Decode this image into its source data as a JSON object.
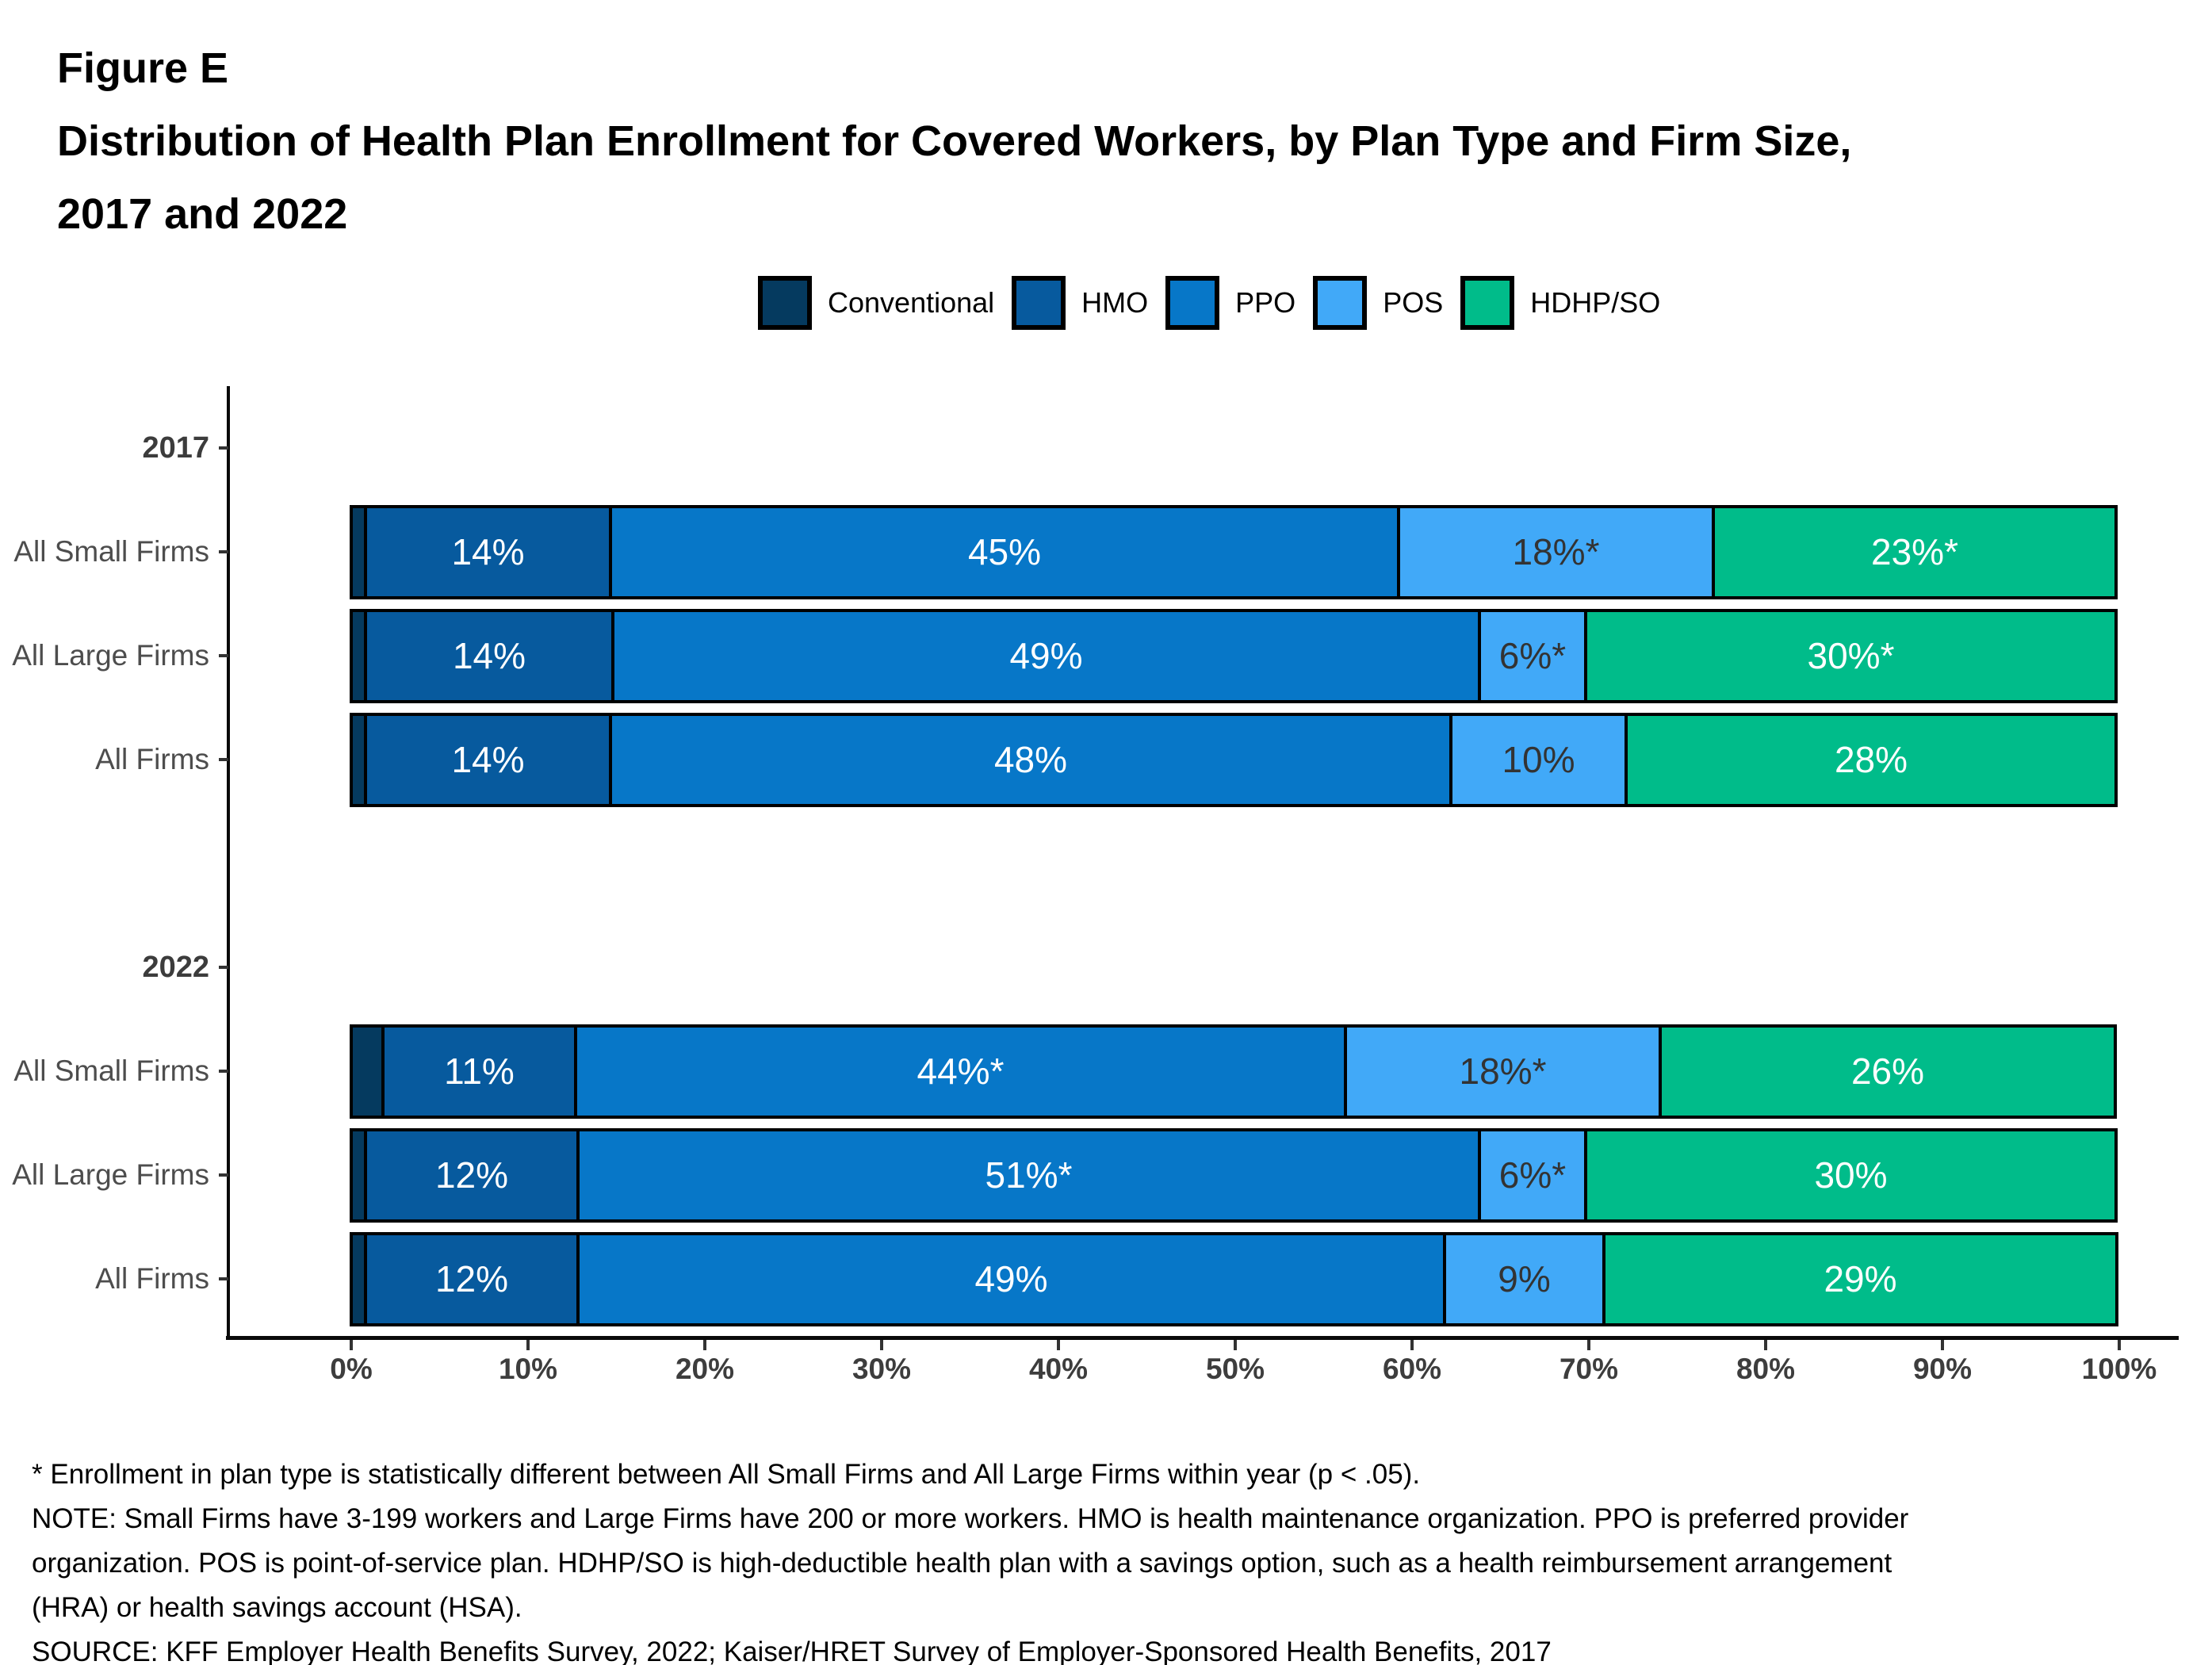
{
  "figure": {
    "label": "Figure E",
    "title_lines": [
      "Distribution of Health Plan Enrollment for Covered Workers, by Plan Type and Firm Size,",
      "2017 and 2022"
    ]
  },
  "legend": [
    {
      "label": "Conventional",
      "color": "#053A5F",
      "label_text_color": "#ffffff"
    },
    {
      "label": "HMO",
      "color": "#075A9E",
      "label_text_color": "#ffffff"
    },
    {
      "label": "PPO",
      "color": "#0777C8",
      "label_text_color": "#ffffff"
    },
    {
      "label": "POS",
      "color": "#41A9F8",
      "label_text_color": "#333333"
    },
    {
      "label": "HDHP/SO",
      "color": "#00BC8A",
      "label_text_color": "#ffffff"
    }
  ],
  "chart_data": {
    "type": "bar",
    "orientation": "horizontal",
    "stacked": true,
    "title": "Distribution of Health Plan Enrollment for Covered Workers, by Plan Type and Firm Size, 2017 and 2022",
    "xlabel": "",
    "ylabel": "",
    "xlim": [
      0,
      100
    ],
    "x_ticks": [
      "0%",
      "10%",
      "20%",
      "30%",
      "40%",
      "50%",
      "60%",
      "70%",
      "80%",
      "90%",
      "100%"
    ],
    "grid": false,
    "legend_position": "top-center",
    "series_names": [
      "Conventional",
      "HMO",
      "PPO",
      "POS",
      "HDHP/SO"
    ],
    "groups": [
      {
        "year": "2017",
        "rows": [
          {
            "label": "All Small Firms",
            "values": [
              1,
              14,
              45,
              18,
              23
            ],
            "display_labels": [
              "",
              "14%",
              "45%",
              "18%*",
              "23%*"
            ]
          },
          {
            "label": "All Large Firms",
            "values": [
              1,
              14,
              49,
              6,
              30
            ],
            "display_labels": [
              "",
              "14%",
              "49%",
              "6%*",
              "30%*"
            ]
          },
          {
            "label": "All Firms",
            "values": [
              1,
              14,
              48,
              10,
              28
            ],
            "display_labels": [
              "",
              "14%",
              "48%",
              "10%",
              "28%"
            ]
          }
        ]
      },
      {
        "year": "2022",
        "rows": [
          {
            "label": "All Small Firms",
            "values": [
              2,
              11,
              44,
              18,
              26
            ],
            "display_labels": [
              "",
              "11%",
              "44%*",
              "18%*",
              "26%"
            ]
          },
          {
            "label": "All Large Firms",
            "values": [
              1,
              12,
              51,
              6,
              30
            ],
            "display_labels": [
              "",
              "12%",
              "51%*",
              "6%*",
              "30%"
            ]
          },
          {
            "label": "All Firms",
            "values": [
              1,
              12,
              49,
              9,
              29
            ],
            "display_labels": [
              "",
              "12%",
              "49%",
              "9%",
              "29%"
            ]
          }
        ]
      }
    ]
  },
  "footnotes": {
    "lines": [
      "* Enrollment in plan type is statistically different between All Small Firms and All Large Firms within year (p < .05).",
      "NOTE: Small Firms have 3-199 workers and Large Firms have 200 or more workers. HMO is health maintenance organization. PPO is preferred provider",
      "organization. POS is point-of-service plan. HDHP/SO is high-deductible health plan with a savings option, such as a health reimbursement arrangement",
      "(HRA) or health savings account (HSA).",
      "SOURCE: KFF Employer Health Benefits Survey, 2022; Kaiser/HRET Survey of Employer-Sponsored Health Benefits, 2017"
    ]
  }
}
